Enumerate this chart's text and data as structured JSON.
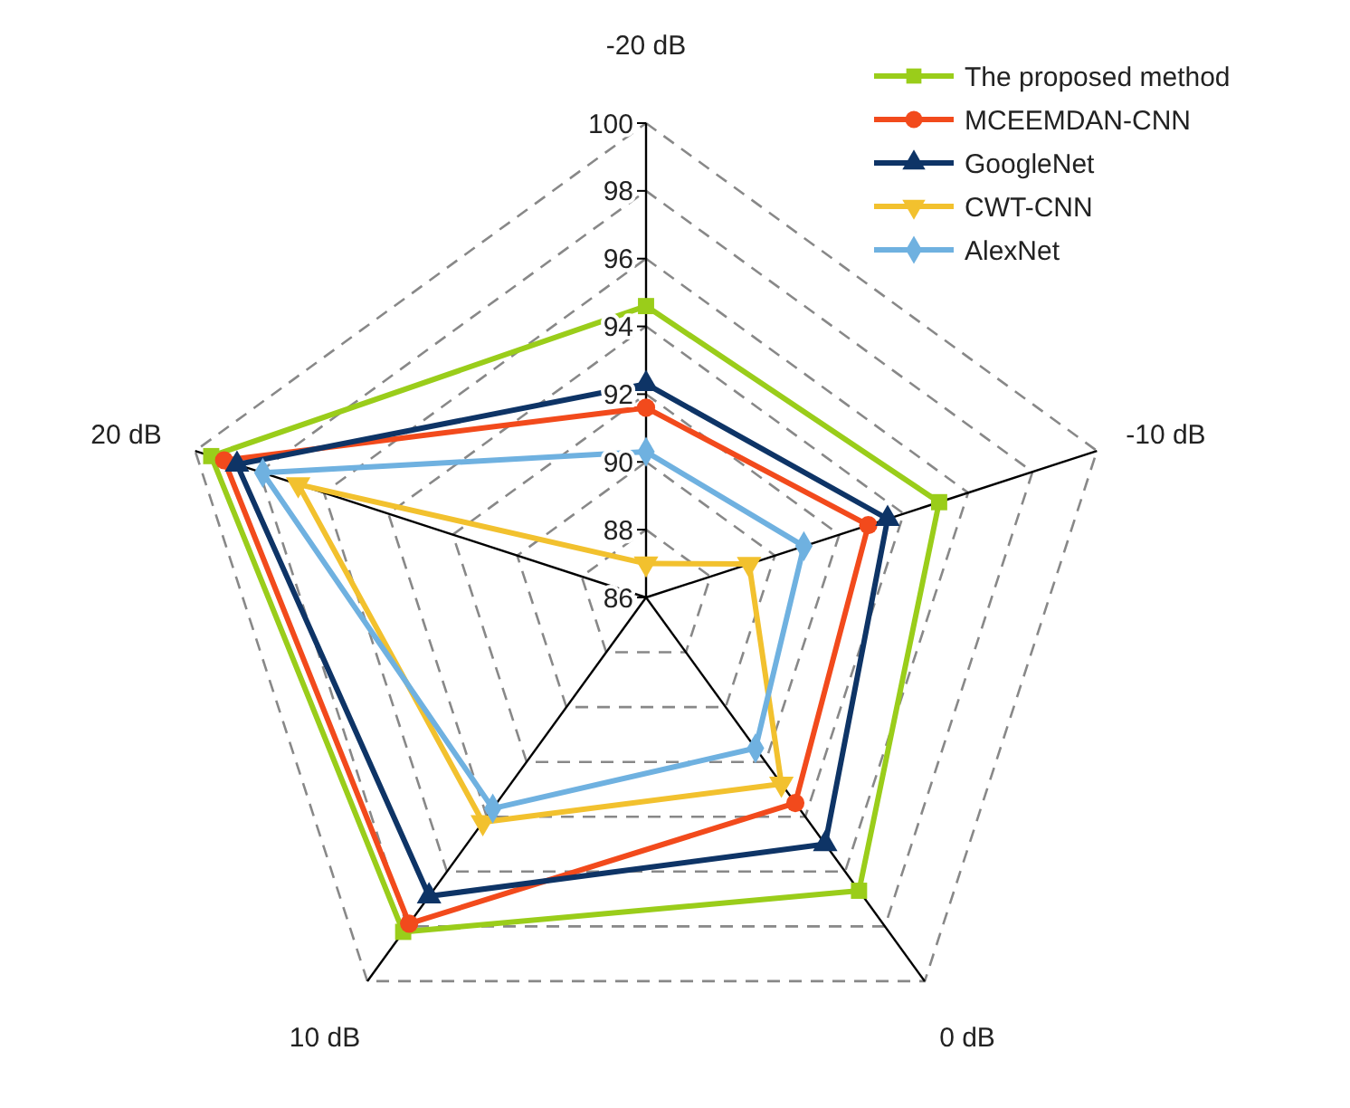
{
  "chart_data": {
    "type": "radar",
    "categories": [
      "-20 dB",
      "-10 dB",
      "0 dB",
      "10 dB",
      "20 dB"
    ],
    "ylim": [
      86,
      100
    ],
    "yticks": [
      86,
      88,
      90,
      92,
      94,
      96,
      98,
      100
    ],
    "grid": true,
    "legend": "top right",
    "line_style": "solid",
    "series": [
      {
        "name": "The proposed method",
        "color": "#9acd1a",
        "marker": "square",
        "values": [
          94.6,
          95.1,
          96.7,
          98.2,
          99.5
        ]
      },
      {
        "name": "MCEEMDAN-CNN",
        "color": "#f24a1c",
        "marker": "circle",
        "values": [
          91.6,
          92.9,
          93.5,
          97.9,
          99.1
        ]
      },
      {
        "name": "GoogleNet",
        "color": "#0e3466",
        "marker": "triangle",
        "values": [
          92.3,
          93.5,
          95.0,
          96.9,
          98.7
        ]
      },
      {
        "name": "CWT-CNN",
        "color": "#f2c12e",
        "marker": "triangle-down",
        "values": [
          87.0,
          89.2,
          92.8,
          94.2,
          96.8
        ]
      },
      {
        "name": "AlexNet",
        "color": "#6fb1e0",
        "marker": "diamond",
        "values": [
          90.3,
          90.9,
          91.5,
          93.7,
          97.9
        ]
      }
    ]
  }
}
